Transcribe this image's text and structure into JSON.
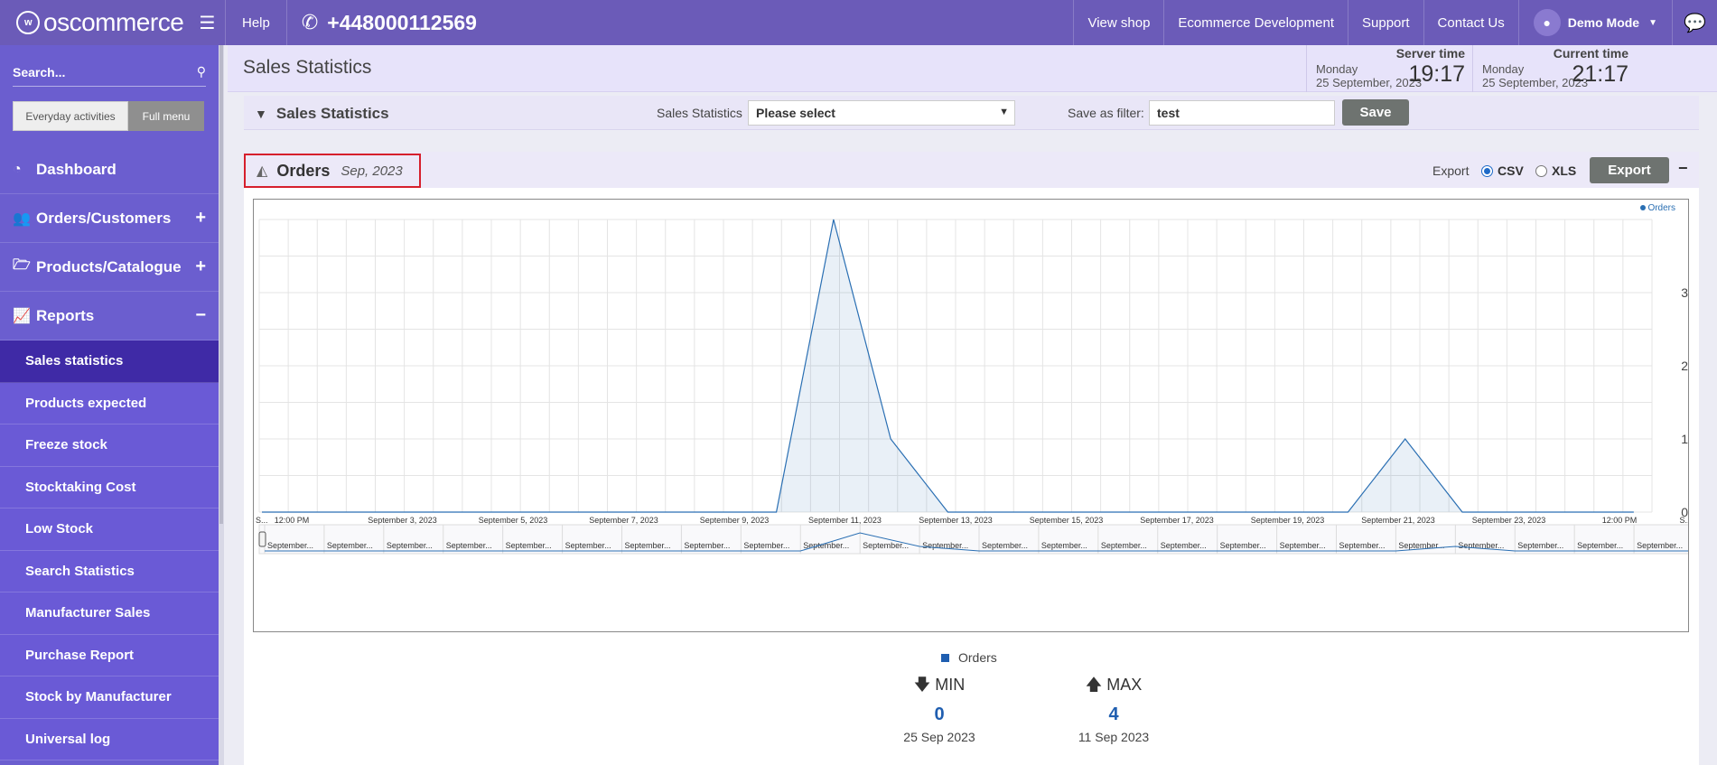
{
  "topbar": {
    "logo": "oscommerce",
    "help": "Help",
    "phone": "+448000112569",
    "nav": [
      "View shop",
      "Ecommerce Development",
      "Support",
      "Contact Us"
    ],
    "user": "Demo Mode"
  },
  "sidebar": {
    "search_placeholder": "Search...",
    "modes": [
      "Everyday activities",
      "Full menu"
    ],
    "items": [
      {
        "label": "Dashboard",
        "icon": "dashboard-icon",
        "toggle": ""
      },
      {
        "label": "Orders/Customers",
        "icon": "users-icon",
        "toggle": "+"
      },
      {
        "label": "Products/Catalogue",
        "icon": "folder-icon",
        "toggle": "+"
      },
      {
        "label": "Reports",
        "icon": "line-chart-icon",
        "toggle": "−"
      }
    ],
    "subitems": [
      "Sales statistics",
      "Products expected",
      "Freeze stock",
      "Stocktaking Cost",
      "Low Stock",
      "Search Statistics",
      "Manufacturer Sales",
      "Purchase Report",
      "Stock by Manufacturer",
      "Universal log"
    ]
  },
  "header": {
    "title": "Sales Statistics",
    "server": {
      "label": "Server time",
      "day": "Monday",
      "date": "25 September, 2023",
      "time": "19:17"
    },
    "current": {
      "label": "Current time",
      "day": "Monday",
      "date": "25 September, 2023",
      "time": "21:17"
    }
  },
  "filter": {
    "title": "Sales Statistics",
    "select_label": "Sales Statistics",
    "select_value": "Please select",
    "save_label": "Save as filter:",
    "save_value": "test",
    "save_button": "Save"
  },
  "panel": {
    "title": "Orders",
    "period": "Sep, 2023",
    "export_label": "Export",
    "formats": [
      "CSV",
      "XLS"
    ],
    "export_button": "Export"
  },
  "chart_data": {
    "type": "area",
    "x": [
      "2023-09-01",
      "2023-09-02",
      "2023-09-03",
      "2023-09-04",
      "2023-09-05",
      "2023-09-06",
      "2023-09-07",
      "2023-09-08",
      "2023-09-09",
      "2023-09-10",
      "2023-09-11",
      "2023-09-12",
      "2023-09-13",
      "2023-09-14",
      "2023-09-15",
      "2023-09-16",
      "2023-09-17",
      "2023-09-18",
      "2023-09-19",
      "2023-09-20",
      "2023-09-21",
      "2023-09-22",
      "2023-09-23",
      "2023-09-24",
      "2023-09-25"
    ],
    "series": [
      {
        "name": "Orders",
        "values": [
          0,
          0,
          0,
          0,
          0,
          0,
          0,
          0,
          0,
          0,
          4,
          1,
          0,
          0,
          0,
          0,
          0,
          0,
          0,
          0,
          1,
          0,
          0,
          0,
          0
        ]
      }
    ],
    "x_tick_labels": [
      "S...",
      "12:00 PM",
      "September 3, 2023",
      "September 5, 2023",
      "September 7, 2023",
      "September 9, 2023",
      "September 11, 2023",
      "September 13, 2023",
      "September 15, 2023",
      "September 17, 2023",
      "September 19, 2023",
      "September 21, 2023",
      "September 23, 2023",
      "12:00 PM",
      "S..."
    ],
    "y_ticks": [
      0,
      1,
      2,
      3
    ],
    "ylim": [
      0,
      4
    ],
    "navigator_label": "September...",
    "color": "#2a6fb3"
  },
  "stats": {
    "min": {
      "label": "MIN",
      "value": "0",
      "date": "25 Sep 2023"
    },
    "max": {
      "label": "MAX",
      "value": "4",
      "date": "11 Sep 2023"
    }
  }
}
